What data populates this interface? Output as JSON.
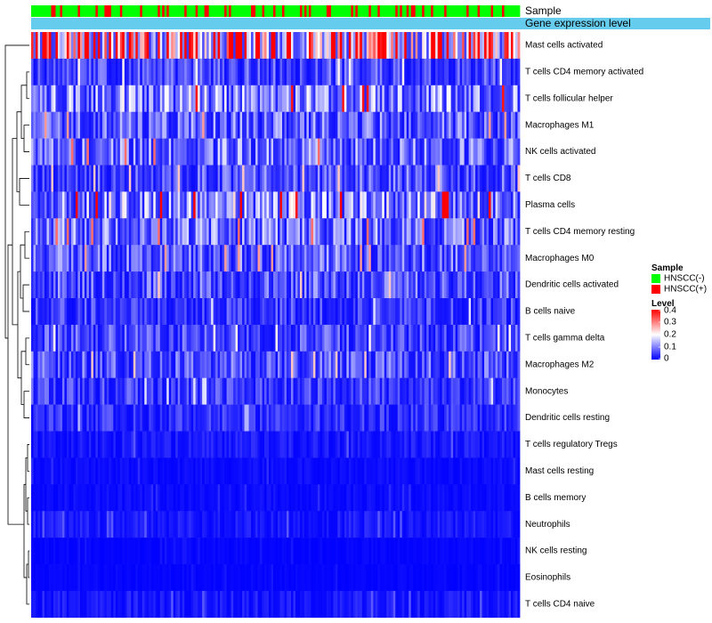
{
  "chart_data": {
    "type": "heatmap",
    "title": "",
    "column_count": 220,
    "annotation_rows": [
      {
        "label": "Sample"
      },
      {
        "label": "Gene expression level"
      }
    ],
    "rows": [
      {
        "label": "Mast cells activated",
        "mean_level": 0.28
      },
      {
        "label": "T cells CD4 memory activated",
        "mean_level": 0.06
      },
      {
        "label": "T cells follicular helper",
        "mean_level": 0.11
      },
      {
        "label": "Macrophages M1",
        "mean_level": 0.08
      },
      {
        "label": "NK cells activated",
        "mean_level": 0.09
      },
      {
        "label": "T cells CD8",
        "mean_level": 0.07
      },
      {
        "label": "Plasma cells",
        "mean_level": 0.12
      },
      {
        "label": "T cells CD4 memory resting",
        "mean_level": 0.09
      },
      {
        "label": "Macrophages M0",
        "mean_level": 0.08
      },
      {
        "label": "Dendritic cells activated",
        "mean_level": 0.07
      },
      {
        "label": "B cells naive",
        "mean_level": 0.05
      },
      {
        "label": "T cells gamma delta",
        "mean_level": 0.06
      },
      {
        "label": "Macrophages M2",
        "mean_level": 0.07
      },
      {
        "label": "Monocytes",
        "mean_level": 0.05
      },
      {
        "label": "Dendritic cells resting",
        "mean_level": 0.04
      },
      {
        "label": "T cells regulatory  Tregs",
        "mean_level": 0.02
      },
      {
        "label": "Mast cells resting",
        "mean_level": 0.01
      },
      {
        "label": "B cells memory",
        "mean_level": 0.01
      },
      {
        "label": "Neutrophils",
        "mean_level": 0.02
      },
      {
        "label": "NK cells resting",
        "mean_level": 0.005
      },
      {
        "label": "Eosinophils",
        "mean_level": 0.005
      },
      {
        "label": "T cells CD4 naive",
        "mean_level": 0.02
      }
    ],
    "legend": {
      "position": "right",
      "sample": {
        "title": "Sample",
        "entries": [
          {
            "label": "HNSCC(-)",
            "color": "#00ff00"
          },
          {
            "label": "HNSCC(+)",
            "color": "#ff0000"
          }
        ]
      },
      "level": {
        "title": "Level",
        "range": [
          0,
          0.4
        ],
        "ticks": [
          {
            "value": 0.4,
            "label": "0.4"
          },
          {
            "value": 0.3,
            "label": "0.3"
          },
          {
            "value": 0.2,
            "label": "0.2"
          },
          {
            "value": 0.1,
            "label": "0.1"
          },
          {
            "value": 0,
            "label": "0"
          }
        ],
        "colors": {
          "low": "#0000ff",
          "mid": "#ffffff",
          "high": "#ff0000"
        }
      }
    },
    "expression_bar_color": "#66ccee",
    "hnscc_pos_fraction": 0.22
  }
}
